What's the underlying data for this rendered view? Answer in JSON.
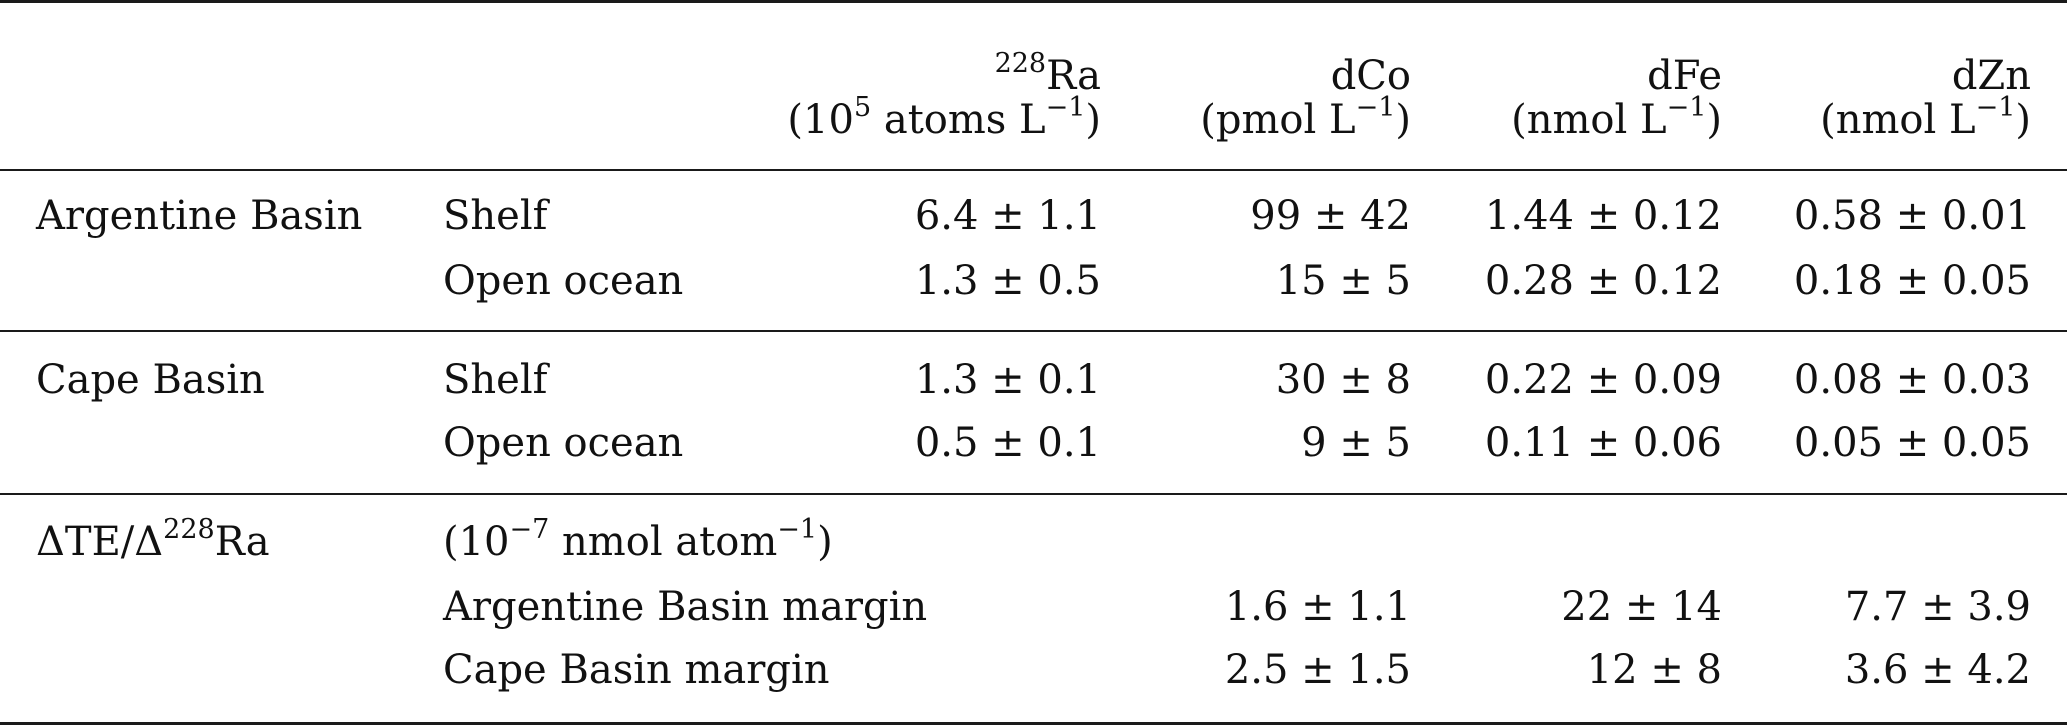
{
  "header": {
    "ra": {
      "sup": "228",
      "name": "Ra",
      "unit_open": "(10",
      "unit_sup": "5",
      "unit_mid": " atoms L",
      "unit_exp": "−1",
      "unit_close": ")"
    },
    "co": {
      "name": "dCo",
      "unit_open": "(pmol L",
      "unit_exp": "−1",
      "unit_close": ")"
    },
    "fe": {
      "name": "dFe",
      "unit_open": "(nmol L",
      "unit_exp": "−1",
      "unit_close": ")"
    },
    "zn": {
      "name": "dZn",
      "unit_open": "(nmol L",
      "unit_exp": "−1",
      "unit_close": ")"
    }
  },
  "groups": [
    {
      "label": "Argentine Basin",
      "rows": [
        {
          "label": "Shelf",
          "ra": "6.4 ± 1.1",
          "co": "99 ± 42",
          "fe": "1.44 ± 0.12",
          "zn": "0.58 ± 0.01"
        },
        {
          "label": "Open ocean",
          "ra": "1.3 ± 0.5",
          "co": "15 ± 5",
          "fe": "0.28 ± 0.12",
          "zn": "0.18 ± 0.05"
        }
      ]
    },
    {
      "label": "Cape Basin",
      "rows": [
        {
          "label": "Shelf",
          "ra": "1.3 ± 0.1",
          "co": "30 ± 8",
          "fe": "0.22 ± 0.09",
          "zn": "0.08 ± 0.03"
        },
        {
          "label": "Open ocean",
          "ra": "0.5 ± 0.1",
          "co": "9 ± 5",
          "fe": "0.11 ± 0.06",
          "zn": "0.05 ± 0.05"
        }
      ]
    }
  ],
  "ratio": {
    "label_pre": "ΔTE/Δ",
    "label_sup": "228",
    "label_post": "Ra",
    "unit_open": "(10",
    "unit_sup": "−7",
    "unit_mid": " nmol atom",
    "unit_exp": "−1",
    "unit_close": ")",
    "rows": [
      {
        "label": "Argentine Basin margin",
        "co": "1.6 ± 1.1",
        "fe": "22 ± 14",
        "zn": "7.7 ± 3.9"
      },
      {
        "label": "Cape Basin margin",
        "co": "2.5 ± 1.5",
        "fe": "12 ± 8",
        "zn": "3.6 ± 4.2"
      }
    ]
  }
}
